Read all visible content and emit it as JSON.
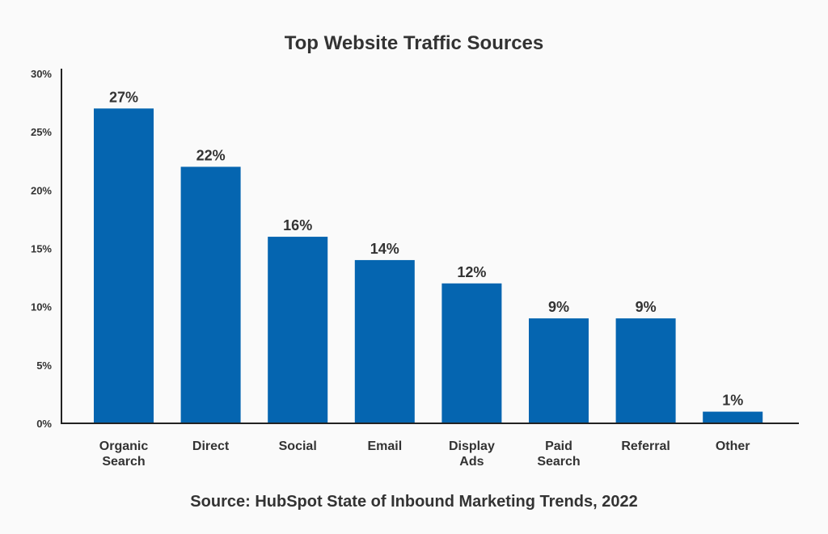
{
  "chart_data": {
    "type": "bar",
    "title": "Top Website Traffic Sources",
    "source": "Source: HubSpot State of Inbound Marketing Trends, 2022",
    "categories": [
      [
        "Organic",
        "Search"
      ],
      [
        "Direct"
      ],
      [
        "Social"
      ],
      [
        "Email"
      ],
      [
        "Display",
        "Ads"
      ],
      [
        "Paid",
        "Search"
      ],
      [
        "Referral"
      ],
      [
        "Other"
      ]
    ],
    "values": [
      27,
      22,
      16,
      14,
      12,
      9,
      9,
      1
    ],
    "value_labels": [
      "27%",
      "22%",
      "16%",
      "14%",
      "12%",
      "9%",
      "9%",
      "1%"
    ],
    "yticks": [
      0,
      5,
      10,
      15,
      20,
      25,
      30
    ],
    "ytick_labels": [
      "0%",
      "5%",
      "10%",
      "15%",
      "20%",
      "25%",
      "30%"
    ],
    "ylim": [
      0,
      30
    ],
    "xlabel": "",
    "ylabel": "",
    "grid": false,
    "bar_color": "#0565b0",
    "axis_color": "#222222"
  }
}
